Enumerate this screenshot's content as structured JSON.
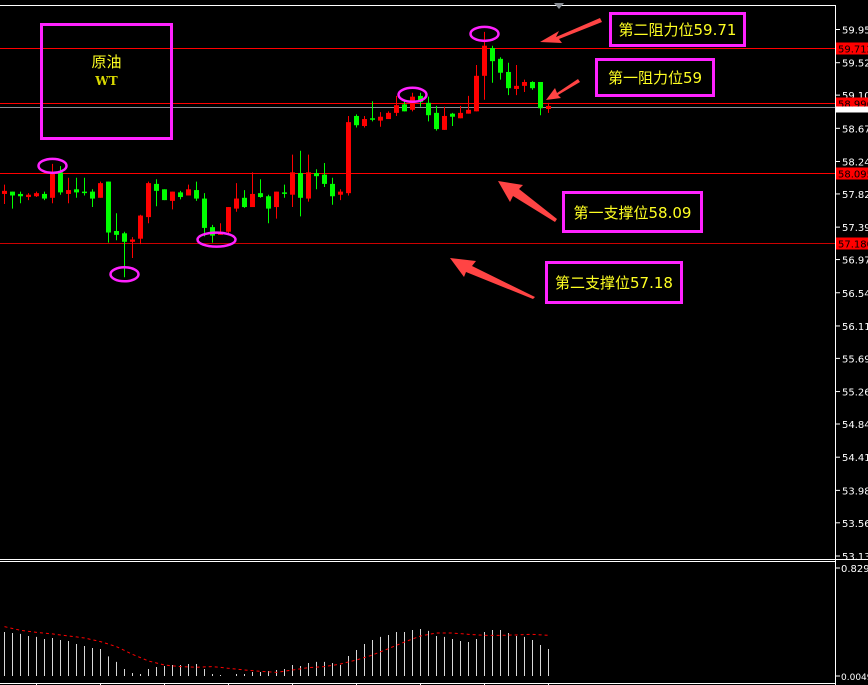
{
  "chart_data": {
    "type": "candlestick",
    "instrument": {
      "name": "原油",
      "code": "WT"
    },
    "colors": {
      "up": "#ff0000",
      "down": "#00ff00",
      "level_line": "#ff0000",
      "bid_line": "#8a8f96",
      "annotation_border": "#ff22ff",
      "annotation_text": "#ffff22",
      "arrow": "#ff4444",
      "histogram": "#d8d8d8",
      "signal": "#ff0000"
    },
    "price_axis": {
      "range": [
        53.13,
        59.95
      ],
      "ticks": [
        "59.950",
        "59.520",
        "59.100",
        "58.670",
        "58.240",
        "57.820",
        "57.390",
        "56.970",
        "56.540",
        "56.110",
        "55.690",
        "55.260",
        "54.840",
        "54.410",
        "53.980",
        "53.560",
        "53.130"
      ]
    },
    "candles_ohlc": [
      [
        57.82,
        57.94,
        57.69,
        57.86
      ],
      [
        57.85,
        57.85,
        57.63,
        57.8
      ],
      [
        57.82,
        57.85,
        57.7,
        57.79
      ],
      [
        57.78,
        57.83,
        57.74,
        57.81
      ],
      [
        57.79,
        57.85,
        57.78,
        57.83
      ],
      [
        57.82,
        57.85,
        57.74,
        57.76
      ],
      [
        57.77,
        58.21,
        57.7,
        58.1
      ],
      [
        58.1,
        58.18,
        57.81,
        57.84
      ],
      [
        57.82,
        58.03,
        57.7,
        57.87
      ],
      [
        57.88,
        58.03,
        57.77,
        57.84
      ],
      [
        57.85,
        58.03,
        57.8,
        57.84
      ],
      [
        57.85,
        57.88,
        57.65,
        57.76
      ],
      [
        57.77,
        57.98,
        57.77,
        57.96
      ],
      [
        57.98,
        57.98,
        57.19,
        57.32
      ],
      [
        57.34,
        57.57,
        57.22,
        57.29
      ],
      [
        57.31,
        57.33,
        56.74,
        57.2
      ],
      [
        57.2,
        57.26,
        56.99,
        57.23
      ],
      [
        57.24,
        57.55,
        57.17,
        57.54
      ],
      [
        57.52,
        57.98,
        57.44,
        57.96
      ],
      [
        57.95,
        58.01,
        57.66,
        57.86
      ],
      [
        57.88,
        57.88,
        57.74,
        57.74
      ],
      [
        57.73,
        57.85,
        57.62,
        57.85
      ],
      [
        57.84,
        57.86,
        57.75,
        57.78
      ],
      [
        57.8,
        57.94,
        57.8,
        57.88
      ],
      [
        57.87,
        57.98,
        57.73,
        57.76
      ],
      [
        57.76,
        57.83,
        57.27,
        57.38
      ],
      [
        57.39,
        57.42,
        57.19,
        57.28
      ],
      [
        57.29,
        57.44,
        57.29,
        57.33
      ],
      [
        57.33,
        57.65,
        57.29,
        57.65
      ],
      [
        57.63,
        57.96,
        57.59,
        57.76
      ],
      [
        57.77,
        57.87,
        57.64,
        57.65
      ],
      [
        57.65,
        58.1,
        57.65,
        57.82
      ],
      [
        57.83,
        58.01,
        57.77,
        57.78
      ],
      [
        57.79,
        57.81,
        57.44,
        57.63
      ],
      [
        57.65,
        57.85,
        57.5,
        57.85
      ],
      [
        57.84,
        57.94,
        57.77,
        57.83
      ],
      [
        57.81,
        58.33,
        57.65,
        58.1
      ],
      [
        58.09,
        58.38,
        57.53,
        57.77
      ],
      [
        57.76,
        58.33,
        57.72,
        58.1
      ],
      [
        58.09,
        58.14,
        57.88,
        58.05
      ],
      [
        58.07,
        58.22,
        57.91,
        57.95
      ],
      [
        57.95,
        58.03,
        57.68,
        57.79
      ],
      [
        57.81,
        57.88,
        57.74,
        57.85
      ],
      [
        57.83,
        58.83,
        57.8,
        58.75
      ],
      [
        58.83,
        58.85,
        58.68,
        58.71
      ],
      [
        58.7,
        58.83,
        58.68,
        58.79
      ],
      [
        58.8,
        59.02,
        58.76,
        58.79
      ],
      [
        58.77,
        58.88,
        58.69,
        58.82
      ],
      [
        58.79,
        58.89,
        58.79,
        58.87
      ],
      [
        58.87,
        59.09,
        58.83,
        58.97
      ],
      [
        58.98,
        59.04,
        58.89,
        58.89
      ],
      [
        58.91,
        59.13,
        58.89,
        59.08
      ],
      [
        59.09,
        59.13,
        58.95,
        59.01
      ],
      [
        59.0,
        59.08,
        58.76,
        58.84
      ],
      [
        58.87,
        58.96,
        58.64,
        58.66
      ],
      [
        58.65,
        58.95,
        58.65,
        58.83
      ],
      [
        58.86,
        58.87,
        58.7,
        58.82
      ],
      [
        58.8,
        58.96,
        58.8,
        58.87
      ],
      [
        58.86,
        59.09,
        58.86,
        58.91
      ],
      [
        58.89,
        59.49,
        58.89,
        59.35
      ],
      [
        59.35,
        59.92,
        59.04,
        59.74
      ],
      [
        59.71,
        59.74,
        59.26,
        59.54
      ],
      [
        59.57,
        59.59,
        59.3,
        59.39
      ],
      [
        59.4,
        59.52,
        59.1,
        59.19
      ],
      [
        59.18,
        59.49,
        59.1,
        59.22
      ],
      [
        59.22,
        59.3,
        59.14,
        59.27
      ],
      [
        59.27,
        59.28,
        59.17,
        59.19
      ],
      [
        59.27,
        59.27,
        58.84,
        58.93
      ],
      [
        58.92,
        59.0,
        58.87,
        58.96
      ]
    ],
    "levels": [
      {
        "price": 59.712,
        "label": "59.712",
        "annotation": "第二阻力位59.71"
      },
      {
        "price": 58.996,
        "label": "58.996",
        "annotation": "第一阻力位59"
      },
      {
        "price": 58.095,
        "label": "58.095",
        "annotation": "第一支撑位58.09"
      },
      {
        "price": 57.18,
        "label": "57.180",
        "annotation": "第二支撑位57.18"
      }
    ],
    "bid_price": 58.94,
    "highlights": [
      {
        "candle": 7,
        "at": "high"
      },
      {
        "candle": 16,
        "at": "low"
      },
      {
        "candle": 27,
        "at": "low"
      },
      {
        "candle": 52,
        "at": "high"
      },
      {
        "candle": 61,
        "at": "high"
      }
    ],
    "indicator": {
      "type": "histogram+signal",
      "axis_labels": [
        "0.8292",
        "0.00498"
      ],
      "range": [
        0,
        0.8292
      ],
      "histogram": [
        0.338,
        0.33,
        0.323,
        0.307,
        0.3,
        0.284,
        0.292,
        0.276,
        0.269,
        0.246,
        0.23,
        0.215,
        0.207,
        0.151,
        0.108,
        0.054,
        0.023,
        0.015,
        0.054,
        0.069,
        0.077,
        0.084,
        0.084,
        0.092,
        0.092,
        0.054,
        0.015,
        0.008,
        0.0,
        0.015,
        0.015,
        0.031,
        0.031,
        0.038,
        0.046,
        0.054,
        0.084,
        0.077,
        0.1,
        0.108,
        0.108,
        0.1,
        0.084,
        0.154,
        0.2,
        0.246,
        0.276,
        0.3,
        0.315,
        0.338,
        0.338,
        0.353,
        0.361,
        0.346,
        0.307,
        0.3,
        0.284,
        0.269,
        0.261,
        0.284,
        0.338,
        0.353,
        0.353,
        0.33,
        0.307,
        0.3,
        0.276,
        0.238,
        0.207
      ],
      "signal": [
        0.379,
        0.365,
        0.351,
        0.343,
        0.335,
        0.329,
        0.323,
        0.315,
        0.307,
        0.3,
        0.292,
        0.278,
        0.264,
        0.245,
        0.225,
        0.196,
        0.166,
        0.141,
        0.115,
        0.1,
        0.084,
        0.078,
        0.072,
        0.07,
        0.067,
        0.07,
        0.072,
        0.066,
        0.059,
        0.053,
        0.046,
        0.041,
        0.036,
        0.032,
        0.028,
        0.037,
        0.046,
        0.055,
        0.064,
        0.068,
        0.072,
        0.082,
        0.092,
        0.108,
        0.123,
        0.142,
        0.161,
        0.186,
        0.21,
        0.236,
        0.261,
        0.284,
        0.307,
        0.319,
        0.33,
        0.33,
        0.33,
        0.325,
        0.32,
        0.316,
        0.312,
        0.312,
        0.312,
        0.314,
        0.315,
        0.318,
        0.32,
        0.316,
        0.312
      ]
    }
  }
}
